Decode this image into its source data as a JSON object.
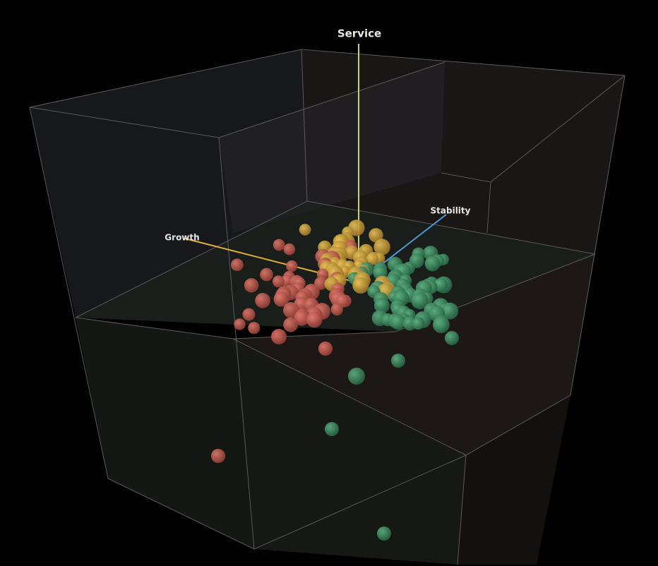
{
  "axes": {
    "service": "Service",
    "growth": "Growth",
    "stability": "Stability"
  }
}
